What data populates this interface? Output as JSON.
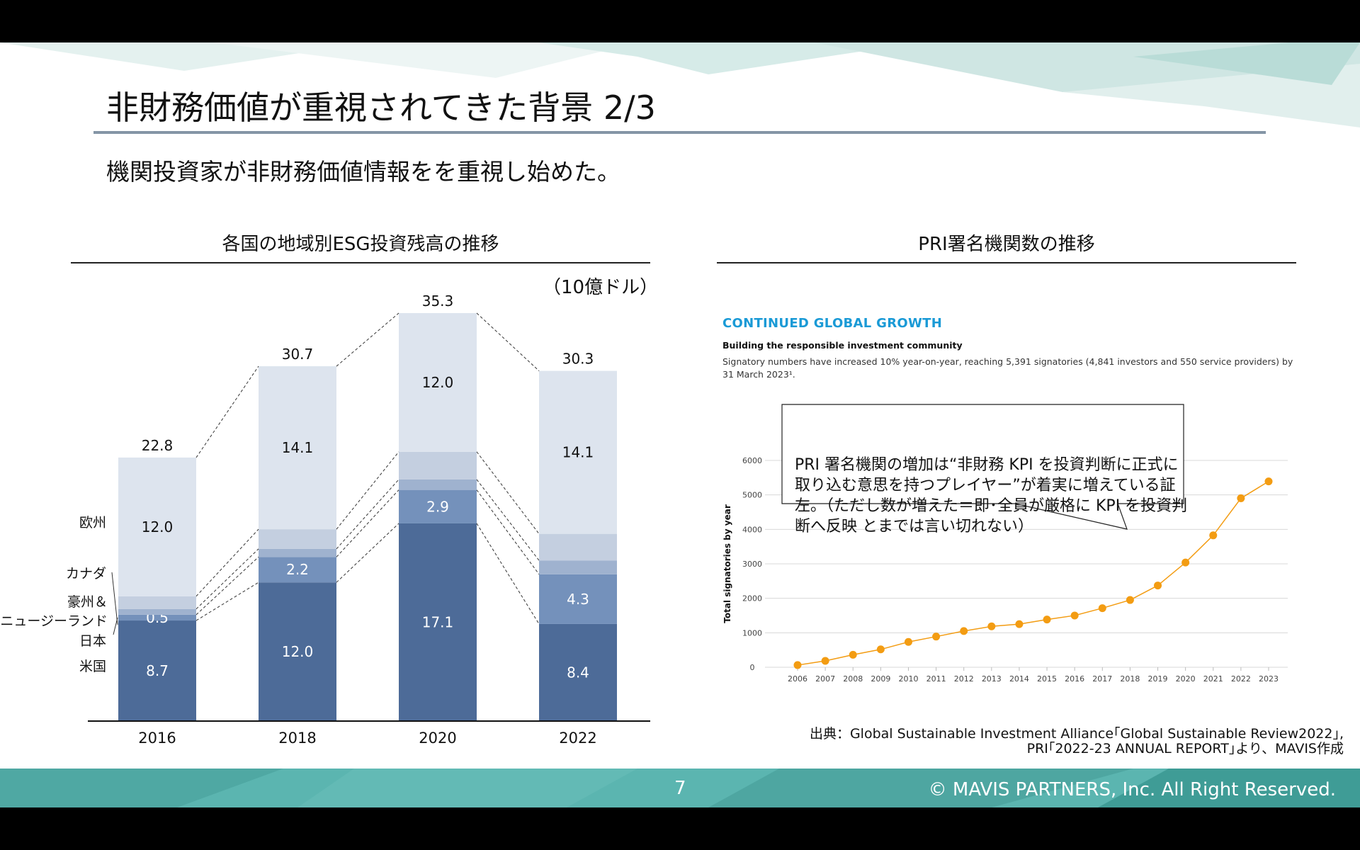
{
  "slide": {
    "title": "非財務価値が重視されてきた背景 2/3",
    "subtitle": "機関投資家が非財務価値情報をを重視し始めた。",
    "page_number": "7",
    "copyright": "© MAVIS PARTNERS, Inc. All Right Reserved.",
    "source_line1": "出典：Global Sustainable Investment Alliance｢Global Sustainable Review2022｣,",
    "source_line2": "PRI｢2022-23 ANNUAL REPORT｣より、MAVIS作成",
    "accent_color": "#5bb5b0"
  },
  "left_section": {
    "title": "各国の地域別ESG投資残高の推移",
    "unit": "（10億ドル）"
  },
  "right_section": {
    "title": "PRI署名機関数の推移",
    "heading": "CONTINUED GLOBAL GROWTH",
    "subheading": "Building the responsible investment community",
    "description": "Signatory numbers have increased 10% year-on-year, reaching 5,391 signatories (4,841 investors and 550 service providers) by 31 March 2023¹.",
    "callout": "PRI 署名機関の増加は“非財務 KPI を投資判断に正式に取り込む意思を持つプレイヤー”が着実に増えている証左。（ただし数が増えた＝即･全員が厳格に KPI を投資判断へ反映 とまでは言い切れない）"
  },
  "chart_data": [
    {
      "type": "bar",
      "stacked": true,
      "title": "各国の地域別ESG投資残高の推移",
      "categories": [
        "2016",
        "2018",
        "2020",
        "2022"
      ],
      "totals": [
        22.8,
        30.7,
        35.3,
        30.3
      ],
      "series": [
        {
          "name": "米国",
          "values": [
            8.7,
            12.0,
            17.1,
            8.4
          ],
          "color": "#4d6b98",
          "labels": [
            "8.7",
            "12.0",
            "17.1",
            "8.4"
          ]
        },
        {
          "name": "日本",
          "values": [
            0.5,
            2.2,
            2.9,
            4.3
          ],
          "color": "#7491bb",
          "labels": [
            "0.5",
            "2.2",
            "2.9",
            "4.3"
          ]
        },
        {
          "name": "豪州＆\nニュージーランド",
          "values": [
            0.5,
            0.7,
            0.9,
            1.2
          ],
          "color": "#9fb2cf",
          "labels": [
            "",
            "",
            "",
            ""
          ]
        },
        {
          "name": "カナダ",
          "values": [
            1.1,
            1.7,
            2.4,
            2.3
          ],
          "color": "#c4cfe0",
          "labels": [
            "",
            "",
            "",
            ""
          ]
        },
        {
          "name": "欧州",
          "values": [
            12.0,
            14.1,
            12.0,
            14.1
          ],
          "color": "#dde4ee",
          "labels": [
            "12.0",
            "14.1",
            "12.0",
            "14.1"
          ]
        }
      ],
      "legend_placement": "left, inline",
      "ylim": [
        0,
        35.3
      ]
    },
    {
      "type": "line",
      "title": "",
      "ylabel": "Total signatories by year",
      "x": [
        "2006",
        "2007",
        "2008",
        "2009",
        "2010",
        "2011",
        "2012",
        "2013",
        "2014",
        "2015",
        "2016",
        "2017",
        "2018",
        "2019",
        "2020",
        "2021",
        "2022",
        "2023"
      ],
      "y": [
        63,
        185,
        362,
        518,
        734,
        890,
        1050,
        1186,
        1251,
        1384,
        1501,
        1714,
        1951,
        2372,
        3038,
        3826,
        4902,
        5391
      ],
      "yticks": [
        "0",
        "1000",
        "2000",
        "3000",
        "4000",
        "5000",
        "6000"
      ],
      "ylim": [
        0,
        6000
      ],
      "color": "#f39c12",
      "grid": true
    }
  ]
}
